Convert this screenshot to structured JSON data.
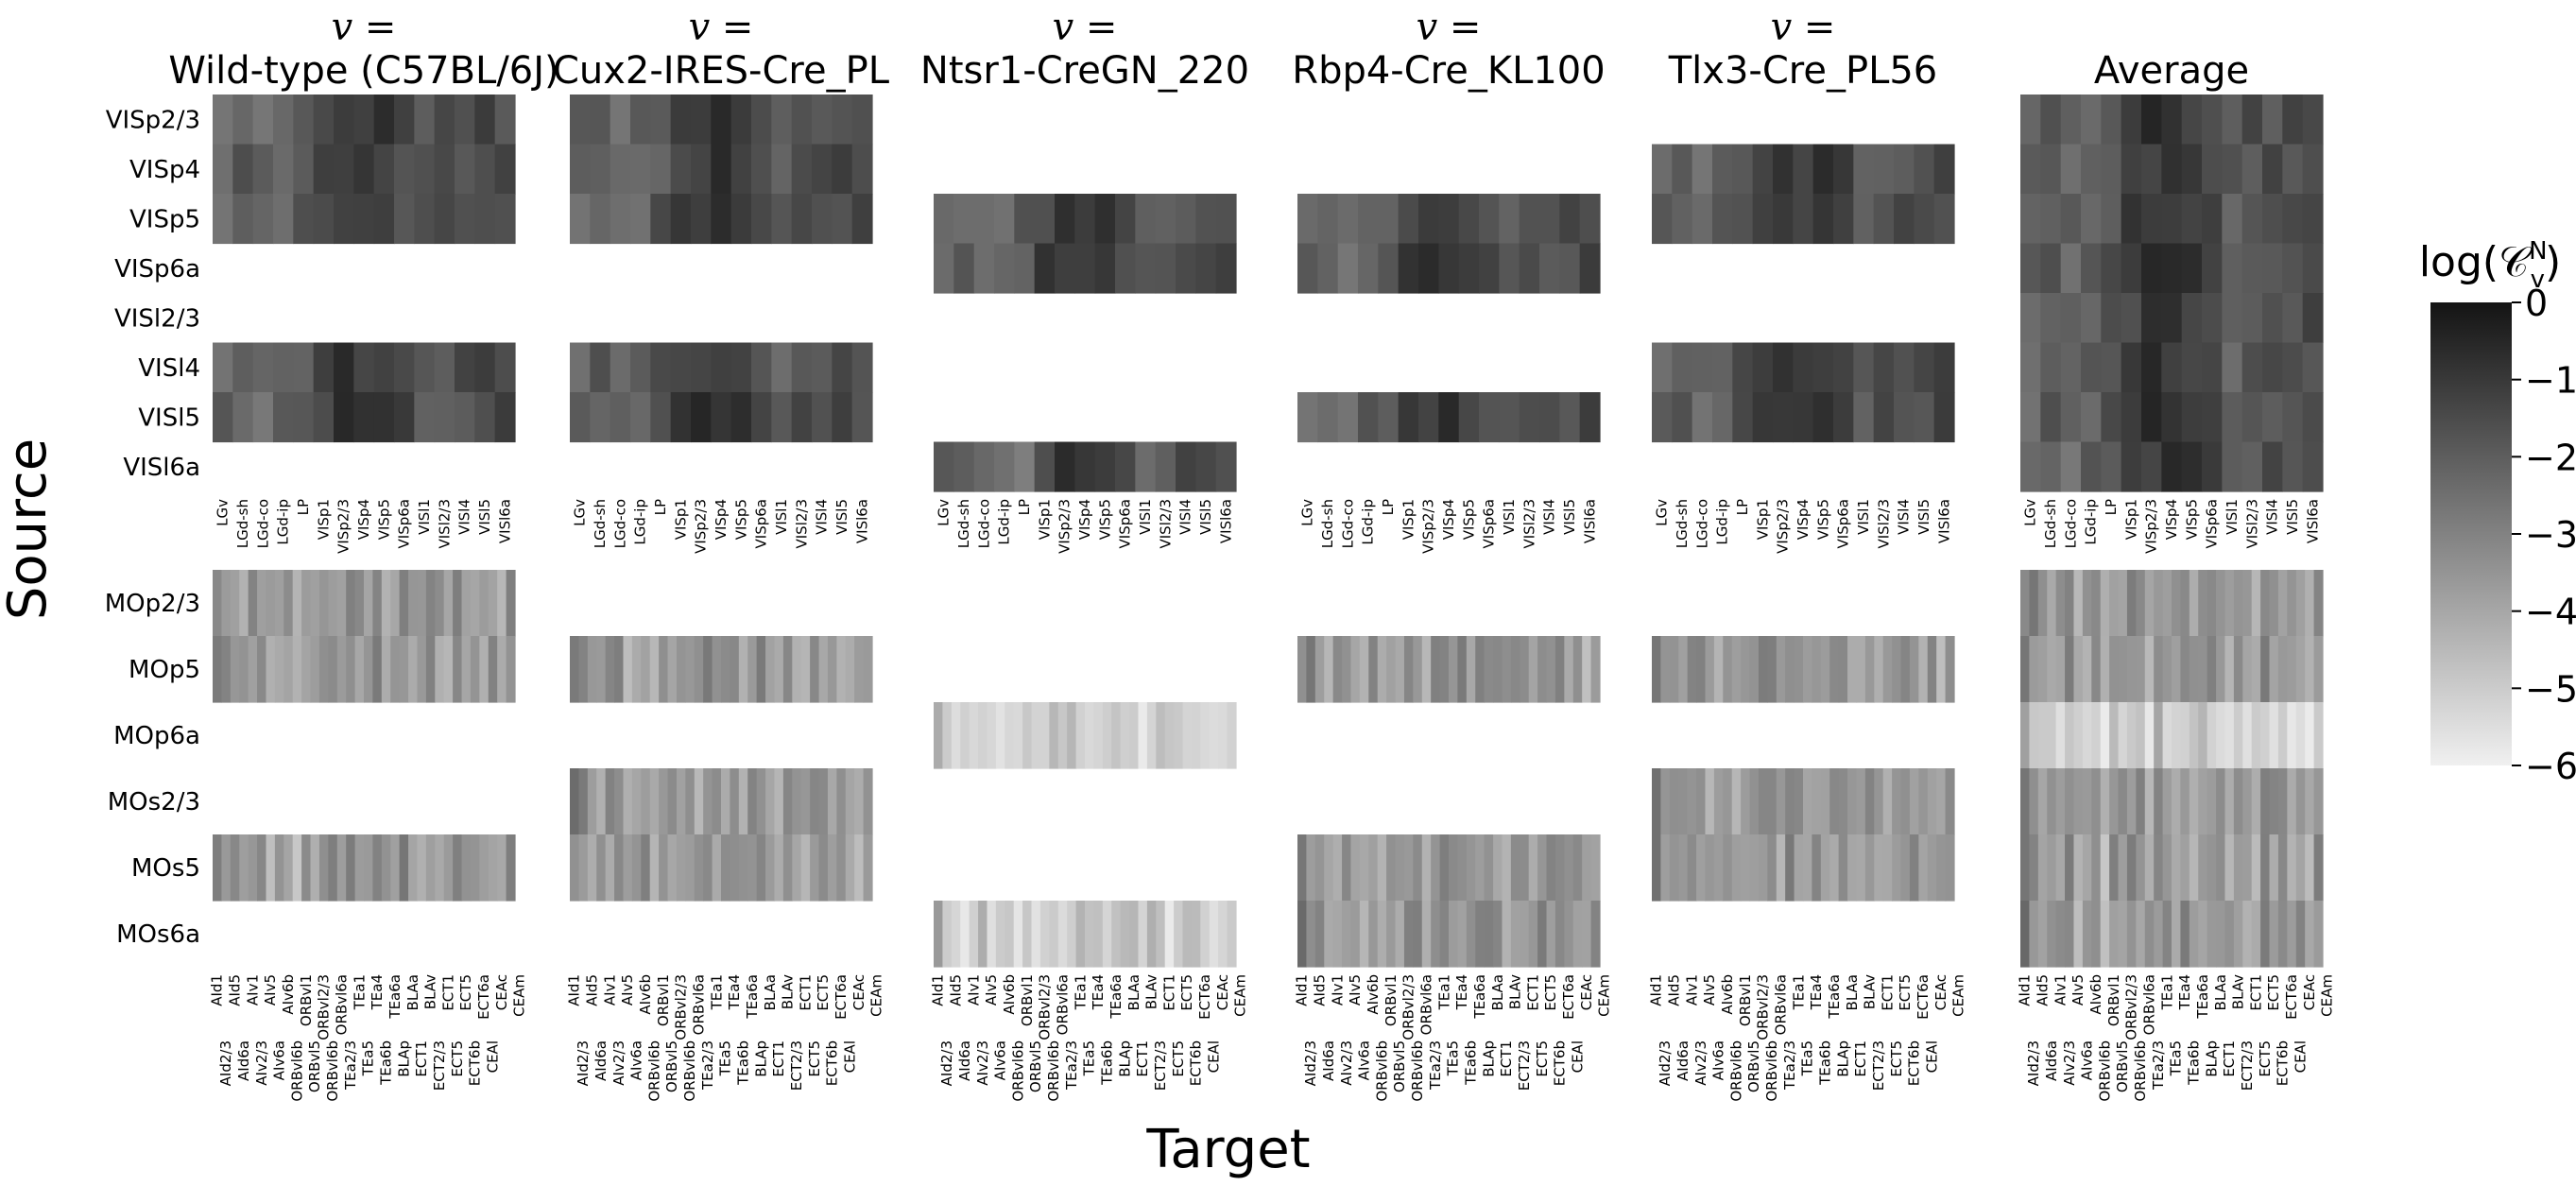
{
  "chart_data": {
    "type": "heatmap",
    "xlabel": "Target",
    "ylabel": "Source",
    "colorbar": {
      "label": "log(𝒞",
      "label_super": "N",
      "label_sub": "v",
      "label_close": ")",
      "range": [
        -6,
        0
      ],
      "ticks": [
        0,
        -1,
        -2,
        -3,
        -4,
        -5,
        -6
      ],
      "tick_labels": [
        "0",
        "−1",
        "−2",
        "−3",
        "−4",
        "−5",
        "−6"
      ],
      "colormap": "grays (0 = black, −6 = white)"
    },
    "panel_title_prefix": "v =",
    "panels": [
      {
        "title_line1": "v =",
        "title": "Wild-type (C57BL/6J)"
      },
      {
        "title_line1": "v =",
        "title": "Cux2-IRES-Cre_PL"
      },
      {
        "title_line1": "v =",
        "title": "Ntsr1-CreGN_220"
      },
      {
        "title_line1": "v =",
        "title": "Rbp4-Cre_KL100"
      },
      {
        "title_line1": "v =",
        "title": "Tlx3-Cre_PL56"
      },
      {
        "title_line1": "",
        "title": "Average"
      }
    ],
    "top_block": {
      "source_labels": [
        "VISp2/3",
        "VISp4",
        "VISp5",
        "VISp6a",
        "VISl2/3",
        "VISl4",
        "VISl5",
        "VISl6a"
      ],
      "target_labels": [
        "LGv",
        "LGd-sh",
        "LGd-co",
        "LGd-ip",
        "LP",
        "VISp1",
        "VISp2/3",
        "VISp4",
        "VISp5",
        "VISp6a",
        "VISl1",
        "VISl2/3",
        "VISl4",
        "VISl5",
        "VISl6a"
      ],
      "present_rows": [
        [
          0,
          1,
          2,
          5,
          6
        ],
        [
          0,
          1,
          2,
          5,
          6
        ],
        [
          2,
          3,
          7
        ],
        [
          2,
          3,
          6
        ],
        [
          1,
          2,
          5,
          6
        ],
        [
          0,
          1,
          2,
          3,
          4,
          5,
          6,
          7
        ]
      ],
      "column_profile_log": [
        -2.2,
        -2.0,
        -2.3,
        -2.1,
        -1.8,
        -1.2,
        -0.9,
        -1.0,
        -1.0,
        -1.4,
        -2.0,
        -1.7,
        -1.6,
        -1.5,
        -1.5
      ]
    },
    "bottom_block": {
      "source_labels": [
        "MOp2/3",
        "MOp5",
        "MOp6a",
        "MOs2/3",
        "MOs5",
        "MOs6a"
      ],
      "target_labels_upper": [
        "AId1",
        "AId5",
        "AIv1",
        "AIv5",
        "AIv6b",
        "ORBvl1",
        "ORBvl2/3",
        "ORBvl6a",
        "TEa1",
        "TEa4",
        "TEa6a",
        "BLAa",
        "BLAv",
        "ECT1",
        "ECT5",
        "ECT6a",
        "CEAc",
        "CEAm"
      ],
      "target_labels_lower": [
        "AId2/3",
        "AId6a",
        "AIv2/3",
        "AIv6a",
        "ORBvl6b",
        "ORBvl5",
        "ORBvl6b",
        "TEa2/3",
        "TEa5",
        "TEa6b",
        "BLAp",
        "ECT1",
        "ECT2/3",
        "ECT5",
        "ECT6b",
        "CEAl"
      ],
      "present_rows": [
        [
          0,
          1,
          4
        ],
        [
          1,
          3,
          4
        ],
        [
          2,
          5
        ],
        [
          1,
          4,
          5
        ],
        [
          1,
          3,
          4
        ],
        [
          0,
          1,
          2,
          3,
          4,
          5
        ]
      ],
      "column_profile_log": [
        -2.8,
        -3.2,
        -3.6,
        -3.9,
        -3.6,
        -3.3,
        -4.1,
        -3.9,
        -3.5,
        -4.3,
        -3.4,
        -3.7,
        -3.3,
        -3.4,
        -3.9,
        -3.1,
        -3.5,
        -3.8,
        -3.3,
        -3.9,
        -3.5,
        -3.2,
        -3.6,
        -3.9,
        -3.4,
        -3.8,
        -4.0,
        -3.3,
        -3.6,
        -3.5,
        -3.9,
        -3.6,
        -4.1,
        -3.3
      ]
    }
  }
}
